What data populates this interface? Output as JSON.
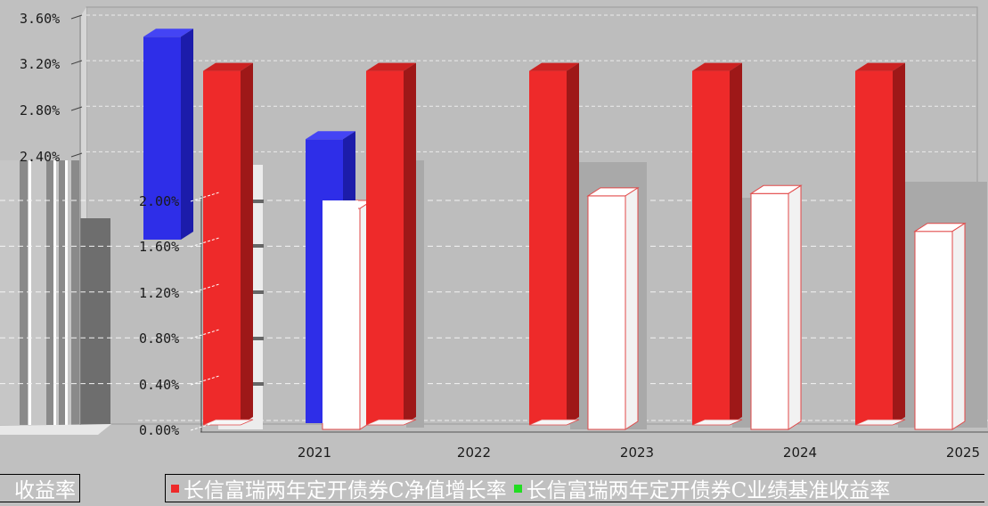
{
  "chart_data": {
    "type": "bar",
    "categories": [
      "2021",
      "2022",
      "2023",
      "2024",
      "2025"
    ],
    "series": [
      {
        "name": "长信富瑞两年定开债券C净值增长率",
        "values": [
          3.11,
          3.11,
          3.11,
          3.11,
          3.11
        ],
        "color": "#ee2a2a"
      },
      {
        "name": "长信富瑞两年定开债券C业绩基准收益率",
        "values": [
          null,
          null,
          null,
          null,
          null
        ],
        "color": "#22dd22"
      }
    ],
    "ghost_series": {
      "blue": [
        3.41,
        2.51
      ],
      "back_white": [
        1.93,
        2.04,
        2.06,
        1.73
      ]
    },
    "y_ticks_top": [
      "3.60%",
      "3.20%",
      "2.80%",
      "2.40%"
    ],
    "y_ticks_inner": [
      "2.00%",
      "1.60%",
      "1.20%",
      "0.80%",
      "0.40%",
      "0.00%"
    ],
    "ylim": [
      0,
      3.6
    ],
    "grid": true,
    "legend_placement": "bottom"
  },
  "legend": {
    "left_fragment": "收益率",
    "items": [
      {
        "label": "长信富瑞两年定开债券C净值增长率",
        "color": "#ee2a2a"
      },
      {
        "label": "长信富瑞两年定开债券C业绩基准收益率",
        "color": "#22dd22"
      }
    ]
  }
}
